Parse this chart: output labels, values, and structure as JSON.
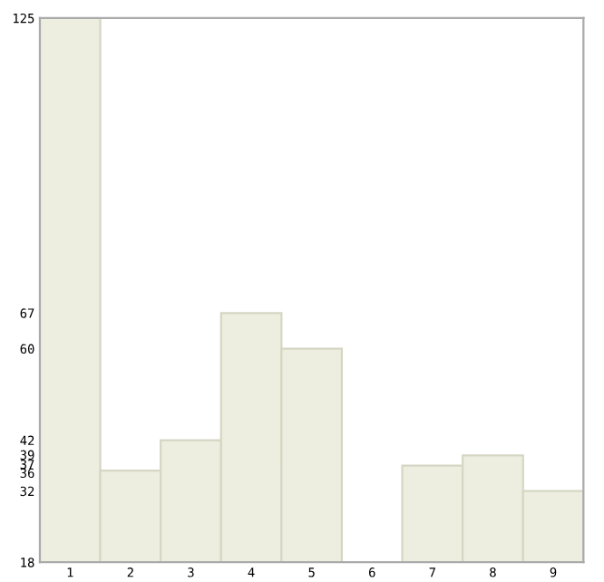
{
  "chart_data": {
    "type": "bar",
    "categories": [
      "1",
      "2",
      "3",
      "4",
      "5",
      "6",
      "7",
      "8",
      "9"
    ],
    "values": [
      125,
      36,
      42,
      67,
      60,
      18,
      37,
      39,
      32
    ],
    "color": "#eeeee0",
    "ylim": [
      18,
      125
    ],
    "yticks": [
      18,
      32,
      36,
      37,
      39,
      42,
      60,
      67,
      125
    ],
    "grid": false
  }
}
